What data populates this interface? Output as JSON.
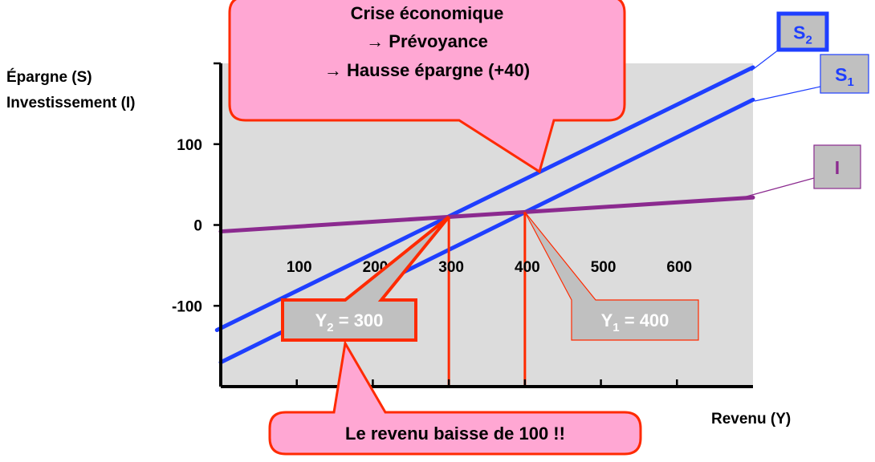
{
  "chart_data": {
    "type": "line",
    "ylabel_line1": "Épargne (S)",
    "ylabel_line2": "Investissement (I)",
    "xlabel": "Revenu (Y)",
    "x_ticks": [
      {
        "value": 100,
        "label": "100"
      },
      {
        "value": 200,
        "label": "200"
      },
      {
        "value": 300,
        "label": "300"
      },
      {
        "value": 400,
        "label": "400"
      },
      {
        "value": 500,
        "label": "500"
      },
      {
        "value": 600,
        "label": "600"
      }
    ],
    "y_ticks": [
      {
        "value": 100,
        "label": "100"
      },
      {
        "value": 0,
        "label": "0"
      },
      {
        "value": -100,
        "label": "-100"
      }
    ],
    "xlim": [
      0,
      700
    ],
    "ylim": [
      -200,
      200
    ],
    "grid": false,
    "series": [
      {
        "name": "S",
        "subscript": "2",
        "color": "#1f3fff",
        "x": [
          -5,
          700
        ],
        "y": [
          -130,
          195
        ]
      },
      {
        "name": "S",
        "subscript": "1",
        "color": "#1f3fff",
        "x": [
          0,
          700
        ],
        "y": [
          -170,
          155
        ]
      },
      {
        "name": "I",
        "subscript": "",
        "color": "#8b2a8f",
        "x": [
          0,
          700
        ],
        "y": [
          -8,
          34
        ]
      }
    ],
    "equilibria": [
      {
        "x": 300,
        "y": 10,
        "label": "Y",
        "subscript": "2",
        "value_text": " = 300"
      },
      {
        "x": 400,
        "y": 16,
        "label": "Y",
        "subscript": "1",
        "value_text": " = 400"
      }
    ],
    "annotations": {
      "top_callout": [
        "Crise économique",
        "→  Prévoyance",
        "→ Hausse épargne (+40)"
      ],
      "bottom_callout": "Le revenu baisse de 100 !!"
    }
  },
  "colors": {
    "plot_bg": "#dcdcdc",
    "callout_fill": "#ffa7d3",
    "callout_stroke": "#ff2a00",
    "label_box_fill": "#c0c0c0",
    "series_blue": "#1f3fff",
    "series_purple": "#8b2a8f",
    "drop_line": "#ff2a00"
  }
}
